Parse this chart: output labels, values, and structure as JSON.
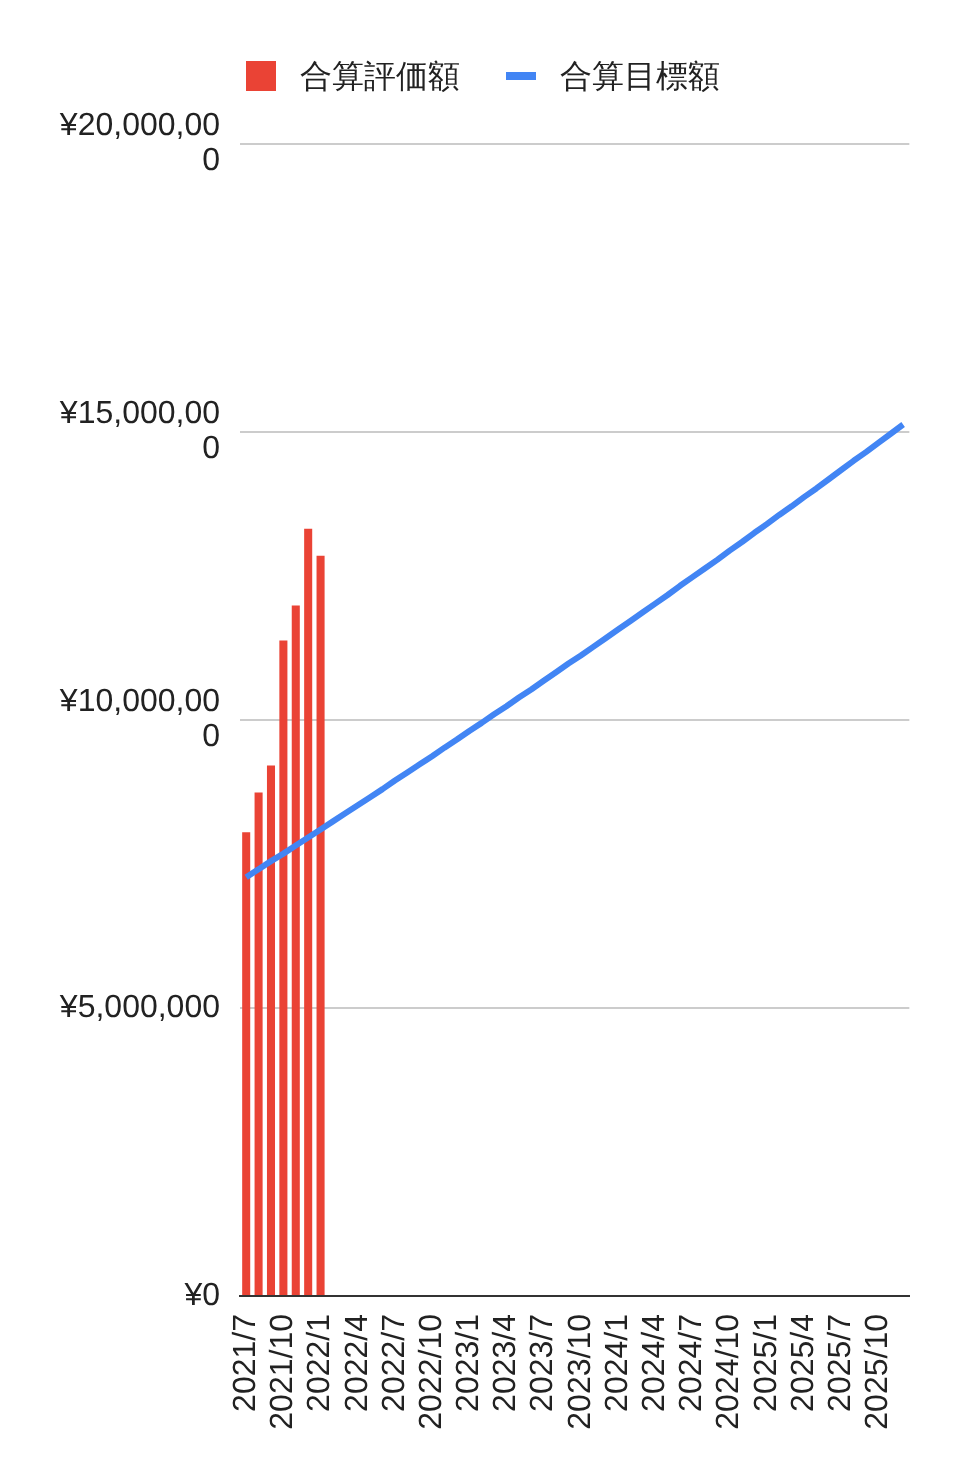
{
  "chart_data": {
    "type": "bar",
    "categories": [
      "2021/7",
      null,
      null,
      "2021/10",
      null,
      null,
      "2022/1",
      null,
      null,
      "2022/4",
      null,
      null,
      "2022/7",
      null,
      null,
      "2022/10",
      null,
      null,
      "2023/1",
      null,
      null,
      "2023/4",
      null,
      null,
      "2023/7",
      null,
      null,
      "2023/10",
      null,
      null,
      "2024/1",
      null,
      null,
      "2024/4",
      null,
      null,
      "2024/7",
      null,
      null,
      "2024/10",
      null,
      null,
      "2025/1",
      null,
      null,
      "2025/4",
      null,
      null,
      "2025/7",
      null,
      null,
      "2025/10",
      null,
      null
    ],
    "series": [
      {
        "name": "合算評価額",
        "color": "#ea4335",
        "values": [
          8050000,
          8740000,
          9210000,
          11380000,
          11990000,
          13320000,
          12850000,
          null,
          null,
          null,
          null,
          null,
          null,
          null,
          null,
          null,
          null,
          null,
          null,
          null,
          null,
          null,
          null,
          null,
          null,
          null,
          null,
          null,
          null,
          null,
          null,
          null,
          null,
          null,
          null,
          null,
          null,
          null,
          null,
          null,
          null,
          null,
          null,
          null,
          null,
          null,
          null,
          null,
          null,
          null,
          null,
          null,
          null,
          null
        ]
      },
      {
        "name": "合算目標額",
        "type": "line",
        "color": "#4285f4",
        "values": [
          7270000,
          7410000,
          7550000,
          7680000,
          7820000,
          7960000,
          8100000,
          8240000,
          8380000,
          8520000,
          8660000,
          8800000,
          8950000,
          9090000,
          9230000,
          9370000,
          9520000,
          9660000,
          9810000,
          9950000,
          10100000,
          10240000,
          10390000,
          10530000,
          10680000,
          10830000,
          10980000,
          11120000,
          11270000,
          11420000,
          11570000,
          11720000,
          11870000,
          12020000,
          12170000,
          12330000,
          12480000,
          12630000,
          12780000,
          12940000,
          13090000,
          13250000,
          13400000,
          13560000,
          13710000,
          13870000,
          14020000,
          14180000,
          14340000,
          14500000,
          14650000,
          14810000,
          14970000,
          15130000
        ]
      }
    ],
    "ylim": [
      0,
      20000000
    ],
    "yticks": [
      {
        "value": 0,
        "label": "¥0"
      },
      {
        "value": 5000000,
        "label": "¥5,000,000"
      },
      {
        "value": 10000000,
        "label": "¥10,000,000"
      },
      {
        "value": 15000000,
        "label": "¥15,000,000"
      },
      {
        "value": 20000000,
        "label": "¥20,000,000"
      }
    ],
    "grid": "y",
    "legend": "top left",
    "marker": "none"
  }
}
